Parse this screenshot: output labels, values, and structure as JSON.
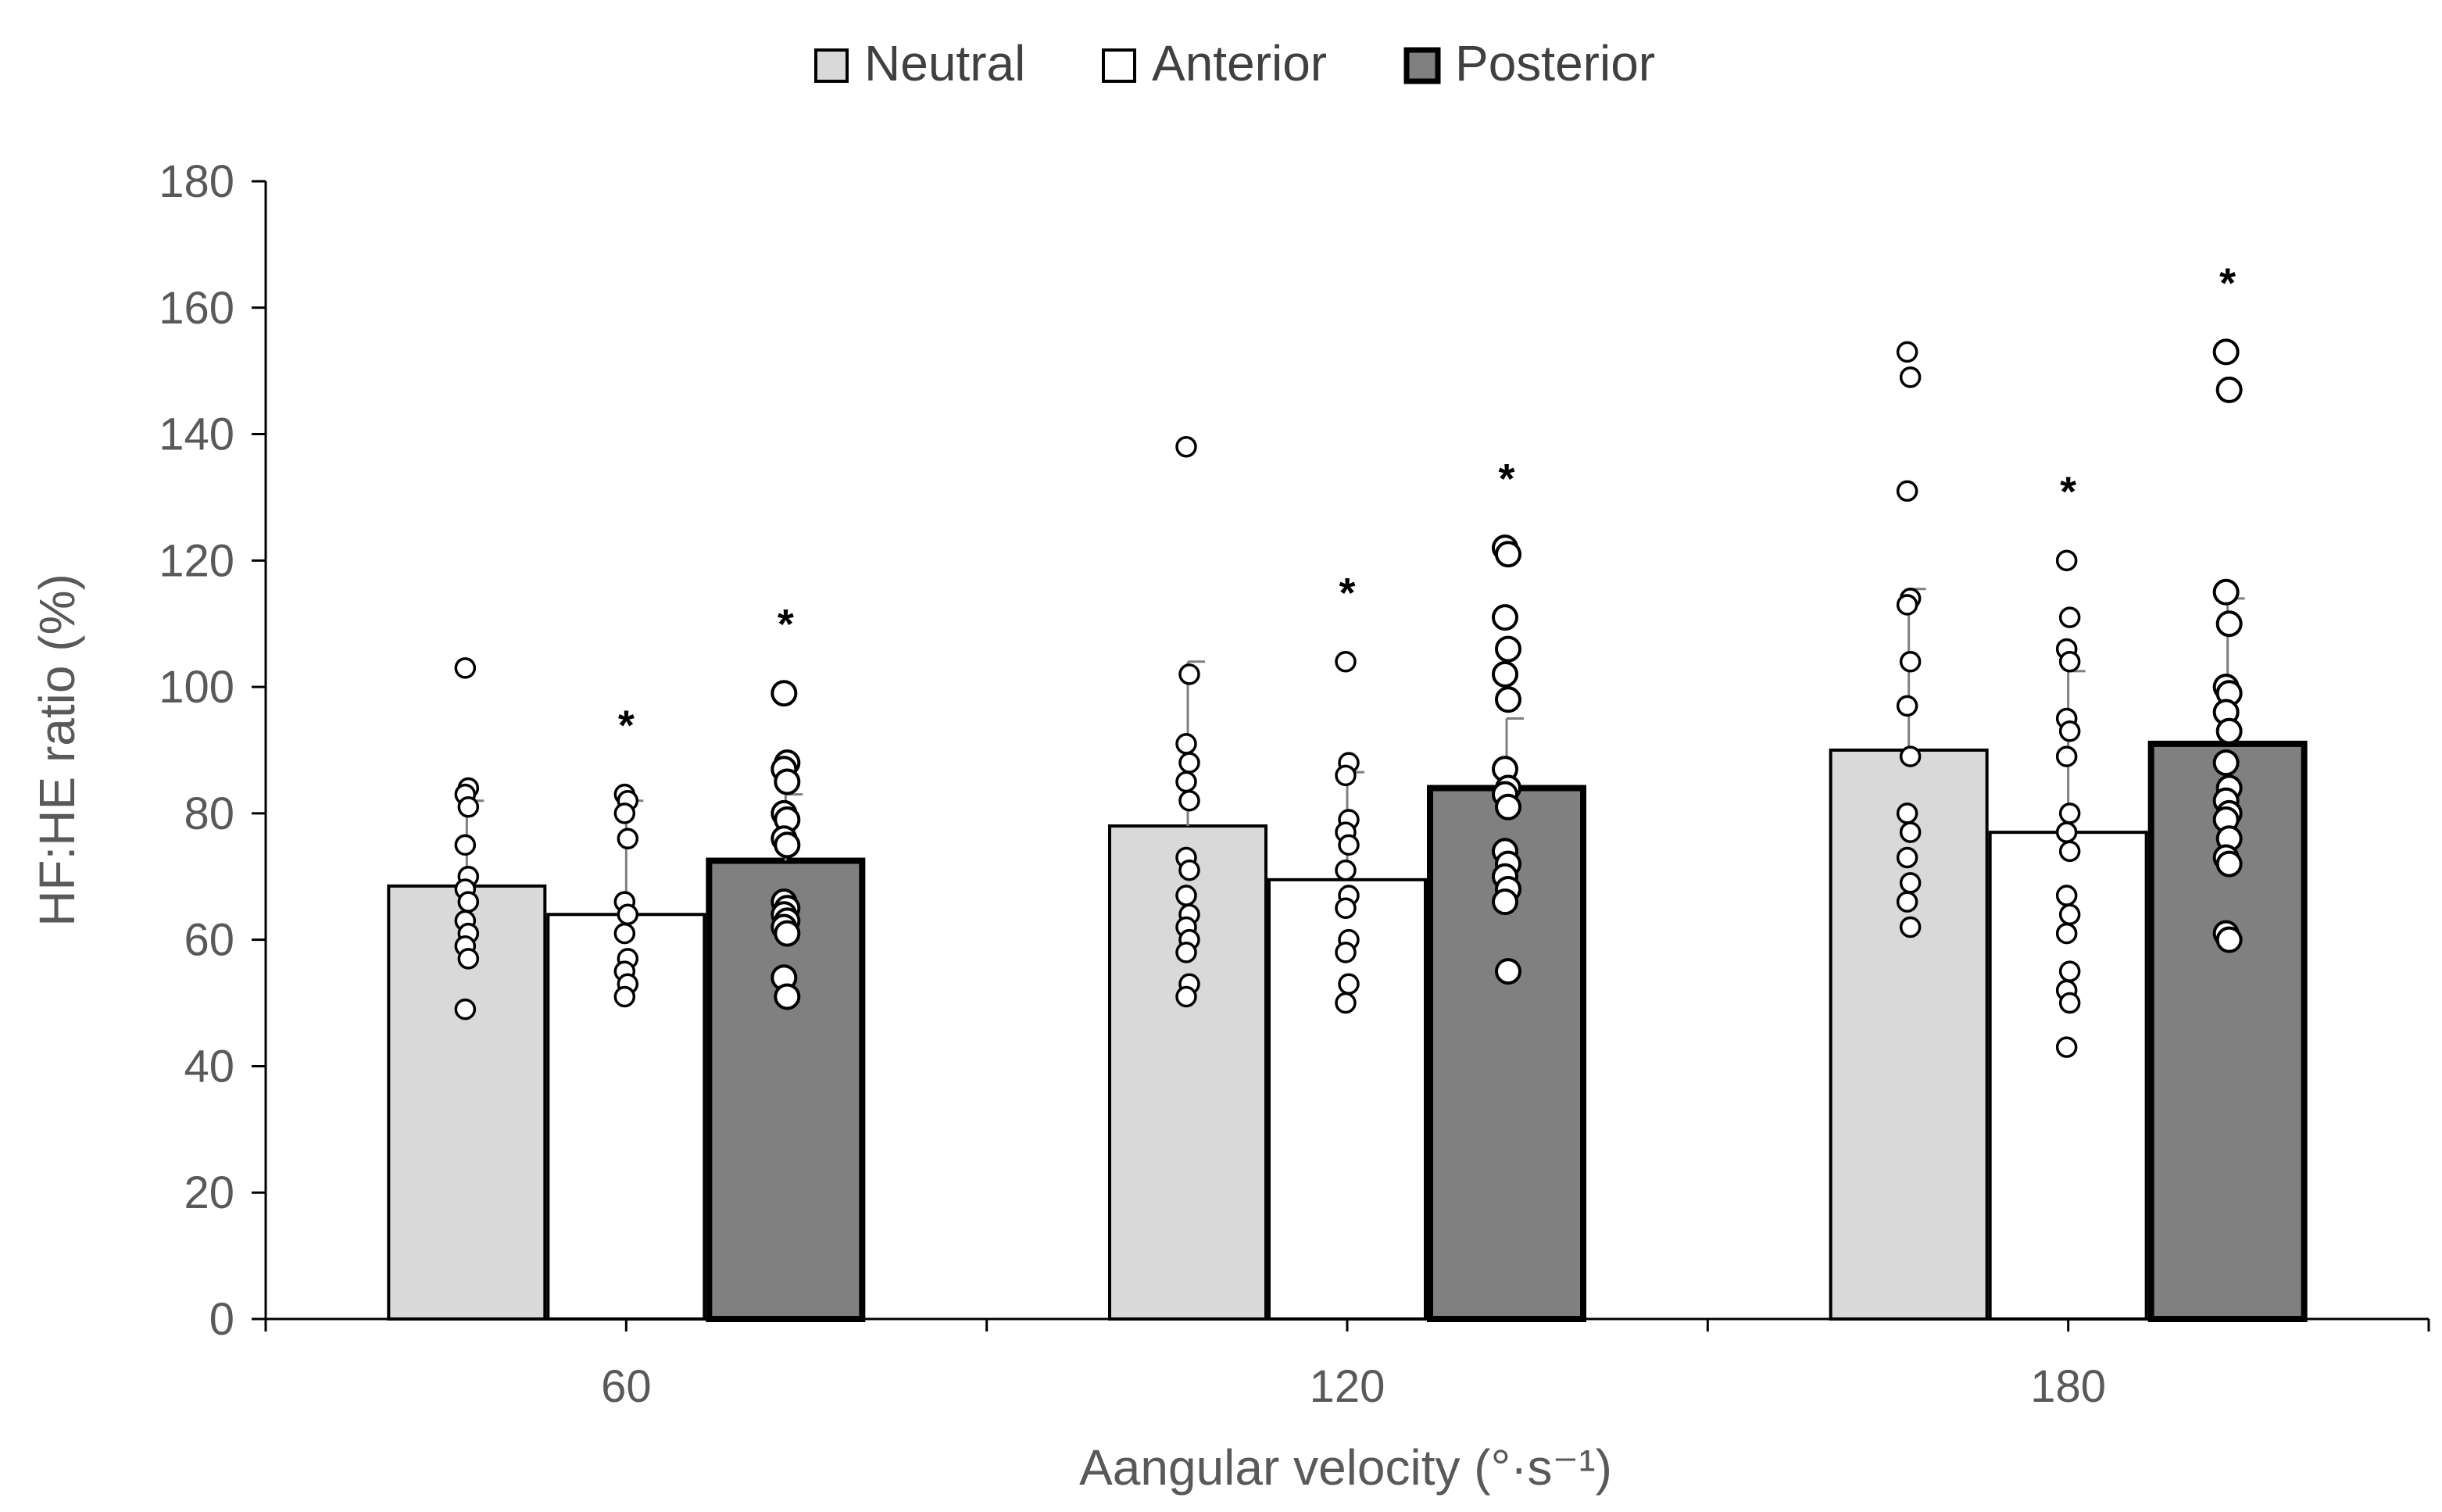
{
  "chart_data": {
    "type": "bar",
    "title": "",
    "xlabel": "Aangular velocity (°·s⁻¹)",
    "ylabel": "HF:HE ratio (%)",
    "ylim": [
      0,
      180
    ],
    "ytick_step": 20,
    "yticks": [
      "0",
      "20",
      "40",
      "60",
      "80",
      "100",
      "120",
      "140",
      "160",
      "180"
    ],
    "categories": [
      "60",
      "120",
      "180"
    ],
    "legend_position": "top-center",
    "series": [
      {
        "name": "Neutral",
        "fill": "#d9d9d9",
        "values": [
          68.5,
          78,
          90
        ],
        "sd": [
          13.5,
          26,
          25.5
        ],
        "significant": [
          false,
          false,
          false
        ],
        "points": [
          [
            103,
            84,
            83,
            81,
            75,
            70,
            68,
            66,
            63,
            61,
            59,
            57,
            49
          ],
          [
            138,
            102,
            91,
            88,
            85,
            82,
            73,
            71,
            67,
            64,
            62,
            60,
            58,
            53,
            51
          ],
          [
            153,
            149,
            131,
            114,
            113,
            104,
            97,
            89,
            80,
            77,
            73,
            69,
            66,
            62
          ]
        ]
      },
      {
        "name": "Anterior",
        "fill": "#ffffff",
        "values": [
          64,
          69.5,
          77
        ],
        "sd": [
          18,
          17,
          25.5
        ],
        "significant": [
          true,
          true,
          true
        ],
        "points": [
          [
            83,
            82,
            80,
            76,
            66,
            64,
            61,
            57,
            55,
            53,
            51
          ],
          [
            104,
            88,
            86,
            79,
            77,
            75,
            71,
            67,
            65,
            60,
            58,
            53,
            50
          ],
          [
            120,
            111,
            106,
            104,
            95,
            93,
            89,
            80,
            77,
            74,
            67,
            64,
            61,
            55,
            52,
            50,
            43
          ]
        ]
      },
      {
        "name": "Posterior",
        "fill": "#808080",
        "values": [
          72.5,
          84,
          91
        ],
        "sd": [
          10.5,
          11,
          23
        ],
        "significant": [
          true,
          true,
          true
        ],
        "points": [
          [
            99,
            88,
            87,
            85,
            80,
            79,
            76,
            75,
            66,
            65,
            64,
            63,
            62,
            61,
            54,
            51
          ],
          [
            122,
            121,
            111,
            106,
            102,
            98,
            87,
            84,
            83,
            81,
            74,
            72,
            70,
            68,
            66,
            55
          ],
          [
            153,
            147,
            115,
            110,
            100,
            99,
            96,
            93,
            88,
            84,
            82,
            80,
            79,
            76,
            73,
            72,
            61,
            60
          ]
        ]
      }
    ],
    "significance_marker": "*"
  }
}
